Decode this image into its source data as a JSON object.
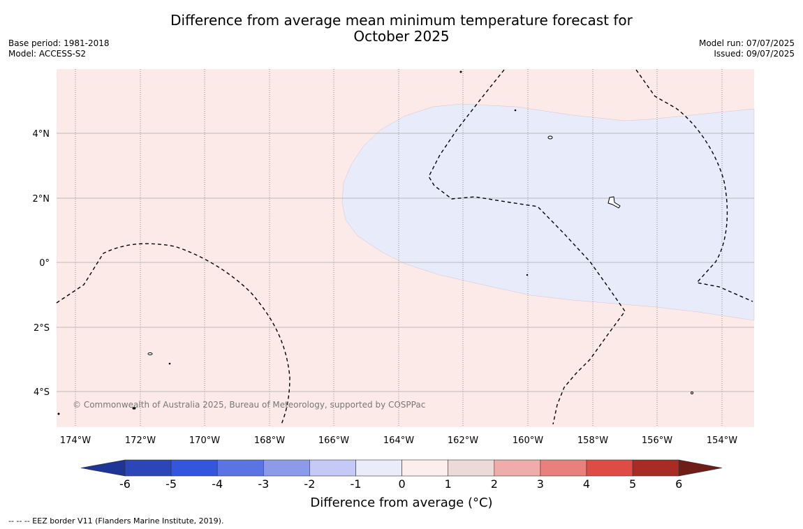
{
  "title_line1": "Difference from average mean minimum temperature forecast for",
  "title_line2": "October 2025",
  "base_period": "Base period: 1981-2018",
  "model": "Model: ACCESS-S2",
  "model_run": "Model run: 07/07/2025",
  "issued": "Issued: 09/07/2025",
  "copyright": "© Commonwealth of Australia 2025, Bureau of Meteorology, supported by COSPPac",
  "footer": "--  --  -- EEZ border V11 (Flanders Marine Institute, 2019).",
  "map": {
    "lon_labels": [
      "174°W",
      "172°W",
      "170°W",
      "168°W",
      "166°W",
      "164°W",
      "162°W",
      "160°W",
      "158°W",
      "156°W",
      "154°W"
    ],
    "lat_labels": [
      "4°N",
      "2°N",
      "0°",
      "2°S",
      "4°S"
    ],
    "background_color": "#fbeae8",
    "negative_region_color": "#e8ebfa"
  },
  "colorbar": {
    "label": "Difference from average (°C)",
    "ticks": [
      "-6",
      "-5",
      "-4",
      "-3",
      "-2",
      "-1",
      "0",
      "1",
      "2",
      "3",
      "4",
      "5",
      "6"
    ],
    "colors": [
      "#1f3596",
      "#2c46b8",
      "#3456dd",
      "#5a74e3",
      "#8b9bea",
      "#c4caf5",
      "#eaecf9",
      "#fceeec",
      "#ecdad8",
      "#efaca8",
      "#e8817c",
      "#dd4d45",
      "#a82b24",
      "#6f1d17"
    ]
  }
}
